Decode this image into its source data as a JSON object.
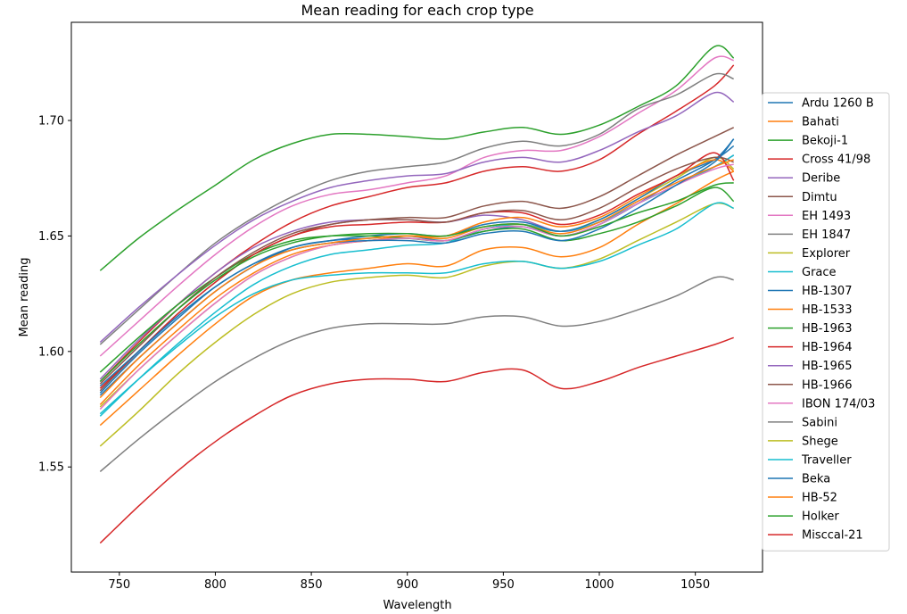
{
  "chart_data": {
    "type": "line",
    "title": "Mean reading for each crop type",
    "xlabel": "Wavelength",
    "ylabel": "Mean reading",
    "xlim": [
      725,
      1085
    ],
    "ylim": [
      1.5045,
      1.7425
    ],
    "xticks": [
      750,
      800,
      850,
      900,
      950,
      1000,
      1050
    ],
    "yticks": [
      1.55,
      1.6,
      1.65,
      1.7
    ],
    "ytick_labels": [
      "1.55",
      "1.60",
      "1.65",
      "1.70"
    ],
    "grid": false,
    "legend_position": "right",
    "x": [
      740,
      760,
      780,
      800,
      820,
      840,
      860,
      880,
      900,
      920,
      940,
      960,
      980,
      1000,
      1020,
      1040,
      1060,
      1070
    ],
    "series": [
      {
        "name": " Ardu 1260 B",
        "color": "#1f77b4",
        "values": [
          1.581,
          1.597,
          1.612,
          1.626,
          1.637,
          1.645,
          1.648,
          1.649,
          1.65,
          1.648,
          1.652,
          1.654,
          1.65,
          1.655,
          1.664,
          1.674,
          1.683,
          1.692
        ]
      },
      {
        "name": " Bahati",
        "color": "#ff7f0e",
        "values": [
          1.568,
          1.583,
          1.598,
          1.612,
          1.624,
          1.631,
          1.634,
          1.636,
          1.638,
          1.637,
          1.644,
          1.645,
          1.641,
          1.645,
          1.655,
          1.664,
          1.674,
          1.678
        ]
      },
      {
        "name": " Bekoji-1",
        "color": "#2ca02c",
        "values": [
          1.635,
          1.649,
          1.661,
          1.672,
          1.683,
          1.69,
          1.694,
          1.694,
          1.693,
          1.692,
          1.695,
          1.697,
          1.694,
          1.698,
          1.706,
          1.715,
          1.732,
          1.727
        ]
      },
      {
        "name": " Cross 41/98",
        "color": "#d62728",
        "values": [
          1.587,
          1.604,
          1.62,
          1.634,
          1.646,
          1.656,
          1.663,
          1.667,
          1.671,
          1.673,
          1.678,
          1.68,
          1.678,
          1.683,
          1.694,
          1.704,
          1.715,
          1.724
        ]
      },
      {
        "name": " Deribe",
        "color": "#9467bd",
        "values": [
          1.588,
          1.605,
          1.62,
          1.634,
          1.645,
          1.652,
          1.656,
          1.657,
          1.657,
          1.656,
          1.659,
          1.657,
          1.652,
          1.656,
          1.664,
          1.672,
          1.68,
          1.685
        ]
      },
      {
        "name": " Dimtu",
        "color": "#8c564b",
        "values": [
          1.583,
          1.6,
          1.616,
          1.63,
          1.642,
          1.65,
          1.655,
          1.657,
          1.658,
          1.658,
          1.663,
          1.665,
          1.662,
          1.667,
          1.676,
          1.685,
          1.693,
          1.697
        ]
      },
      {
        "name": " EH 1493",
        "color": "#e377c2",
        "values": [
          1.598,
          1.613,
          1.628,
          1.642,
          1.654,
          1.663,
          1.668,
          1.67,
          1.673,
          1.676,
          1.684,
          1.687,
          1.687,
          1.693,
          1.703,
          1.713,
          1.727,
          1.726
        ]
      },
      {
        "name": " EH 1847",
        "color": "#7f7f7f",
        "values": [
          1.603,
          1.618,
          1.633,
          1.647,
          1.658,
          1.667,
          1.674,
          1.678,
          1.68,
          1.682,
          1.688,
          1.691,
          1.689,
          1.694,
          1.705,
          1.711,
          1.72,
          1.718
        ]
      },
      {
        "name": " Explorer",
        "color": "#bcbd22",
        "values": [
          1.576,
          1.592,
          1.607,
          1.621,
          1.633,
          1.641,
          1.646,
          1.648,
          1.649,
          1.648,
          1.653,
          1.655,
          1.652,
          1.657,
          1.666,
          1.675,
          1.684,
          1.679
        ]
      },
      {
        "name": " Grace",
        "color": "#17becf",
        "values": [
          1.572,
          1.588,
          1.603,
          1.617,
          1.629,
          1.637,
          1.642,
          1.644,
          1.646,
          1.647,
          1.653,
          1.655,
          1.652,
          1.656,
          1.664,
          1.672,
          1.68,
          1.685
        ]
      },
      {
        "name": " HB-1307",
        "color": "#1f77b4",
        "values": [
          1.582,
          1.599,
          1.614,
          1.628,
          1.638,
          1.645,
          1.648,
          1.65,
          1.651,
          1.65,
          1.655,
          1.656,
          1.652,
          1.657,
          1.666,
          1.676,
          1.683,
          1.689
        ]
      },
      {
        "name": " HB-1533",
        "color": "#ff7f0e",
        "values": [
          1.577,
          1.594,
          1.609,
          1.623,
          1.634,
          1.642,
          1.646,
          1.648,
          1.65,
          1.65,
          1.656,
          1.658,
          1.654,
          1.658,
          1.667,
          1.676,
          1.683,
          1.678
        ]
      },
      {
        "name": " HB-1963",
        "color": "#2ca02c",
        "values": [
          1.591,
          1.606,
          1.62,
          1.632,
          1.642,
          1.648,
          1.65,
          1.65,
          1.649,
          1.648,
          1.652,
          1.653,
          1.648,
          1.651,
          1.656,
          1.663,
          1.671,
          1.665
        ]
      },
      {
        "name": " HB-1964",
        "color": "#d62728",
        "values": [
          1.584,
          1.6,
          1.616,
          1.63,
          1.642,
          1.65,
          1.654,
          1.655,
          1.656,
          1.656,
          1.66,
          1.66,
          1.655,
          1.659,
          1.668,
          1.676,
          1.686,
          1.674
        ]
      },
      {
        "name": " HB-1965",
        "color": "#9467bd",
        "values": [
          1.604,
          1.619,
          1.633,
          1.646,
          1.657,
          1.665,
          1.671,
          1.674,
          1.676,
          1.677,
          1.682,
          1.684,
          1.682,
          1.687,
          1.695,
          1.702,
          1.712,
          1.708
        ]
      },
      {
        "name": " HB-1966",
        "color": "#8c564b",
        "values": [
          1.586,
          1.602,
          1.618,
          1.632,
          1.643,
          1.651,
          1.655,
          1.657,
          1.657,
          1.656,
          1.66,
          1.661,
          1.657,
          1.662,
          1.671,
          1.679,
          1.684,
          1.682
        ]
      },
      {
        "name": " IBON 174/03",
        "color": "#e377c2",
        "values": [
          1.575,
          1.592,
          1.607,
          1.621,
          1.633,
          1.641,
          1.646,
          1.648,
          1.649,
          1.648,
          1.653,
          1.654,
          1.65,
          1.655,
          1.664,
          1.672,
          1.679,
          1.681
        ]
      },
      {
        "name": " Sabini",
        "color": "#7f7f7f",
        "values": [
          1.548,
          1.562,
          1.575,
          1.587,
          1.597,
          1.605,
          1.61,
          1.612,
          1.612,
          1.612,
          1.615,
          1.615,
          1.611,
          1.613,
          1.618,
          1.624,
          1.632,
          1.631
        ]
      },
      {
        "name": " Shege",
        "color": "#bcbd22",
        "values": [
          1.559,
          1.574,
          1.59,
          1.604,
          1.616,
          1.625,
          1.63,
          1.632,
          1.633,
          1.632,
          1.637,
          1.639,
          1.636,
          1.64,
          1.648,
          1.656,
          1.664,
          1.662
        ]
      },
      {
        "name": " Traveller",
        "color": "#17becf",
        "values": [
          1.573,
          1.588,
          1.602,
          1.615,
          1.625,
          1.631,
          1.633,
          1.634,
          1.634,
          1.634,
          1.638,
          1.639,
          1.636,
          1.639,
          1.646,
          1.653,
          1.664,
          1.662
        ]
      },
      {
        "name": "Beka",
        "color": "#1f77b4",
        "values": [
          1.585,
          1.6,
          1.615,
          1.628,
          1.638,
          1.644,
          1.647,
          1.648,
          1.648,
          1.647,
          1.651,
          1.652,
          1.648,
          1.653,
          1.662,
          1.672,
          1.682,
          1.692
        ]
      },
      {
        "name": "HB-52",
        "color": "#ff7f0e",
        "values": [
          1.58,
          1.597,
          1.612,
          1.626,
          1.637,
          1.644,
          1.647,
          1.649,
          1.65,
          1.649,
          1.654,
          1.655,
          1.651,
          1.656,
          1.665,
          1.673,
          1.68,
          1.683
        ]
      },
      {
        "name": "Holker",
        "color": "#2ca02c",
        "values": [
          1.587,
          1.603,
          1.618,
          1.631,
          1.641,
          1.647,
          1.65,
          1.651,
          1.651,
          1.65,
          1.654,
          1.655,
          1.65,
          1.654,
          1.66,
          1.665,
          1.672,
          1.673
        ]
      },
      {
        "name": "Misccal-21",
        "color": "#d62728",
        "values": [
          1.517,
          1.533,
          1.548,
          1.561,
          1.572,
          1.581,
          1.586,
          1.588,
          1.588,
          1.587,
          1.591,
          1.592,
          1.584,
          1.587,
          1.593,
          1.598,
          1.603,
          1.606
        ]
      }
    ]
  }
}
